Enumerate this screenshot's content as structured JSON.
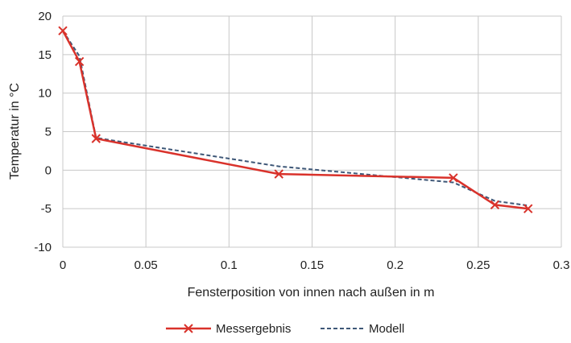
{
  "chart_data": {
    "type": "line",
    "title": "",
    "xlabel": "Fensterposition von innen nach außen in m",
    "ylabel": "Temperatur in °C",
    "xlim": [
      0,
      0.3
    ],
    "ylim": [
      -10,
      20
    ],
    "x_ticks": [
      "0",
      "0.05",
      "0.1",
      "0.15",
      "0.2",
      "0.25",
      "0.3"
    ],
    "y_ticks": [
      "20",
      "15",
      "10",
      "5",
      "0",
      "-5",
      "-10"
    ],
    "grid": true,
    "legend_position": "bottom",
    "series": [
      {
        "name": "Messergebnis",
        "color": "#d9322b",
        "style": "solid-with-x-markers",
        "points": [
          [
            0,
            18.1
          ],
          [
            0.01,
            14.1
          ],
          [
            0.02,
            4.1
          ],
          [
            0.13,
            -0.5
          ],
          [
            0.235,
            -1.0
          ],
          [
            0.26,
            -4.5
          ],
          [
            0.28,
            -5.0
          ]
        ]
      },
      {
        "name": "Modell",
        "color": "#3e5777",
        "style": "dashed",
        "points": [
          [
            0,
            18.1
          ],
          [
            0.01,
            14.8
          ],
          [
            0.02,
            4.2
          ],
          [
            0.13,
            0.5
          ],
          [
            0.235,
            -1.6
          ],
          [
            0.26,
            -4.0
          ],
          [
            0.28,
            -4.6
          ]
        ]
      }
    ]
  }
}
